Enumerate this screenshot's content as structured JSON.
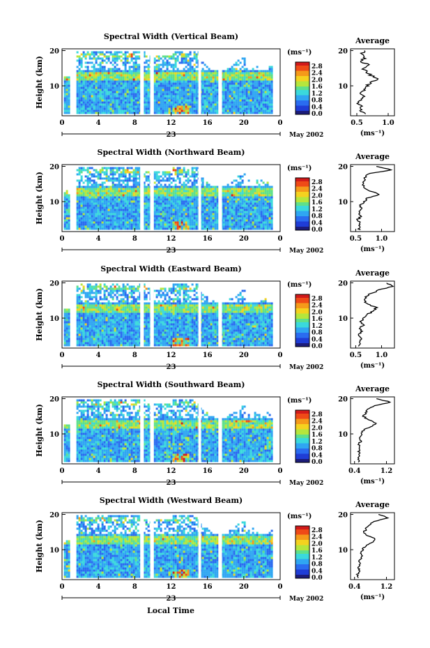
{
  "figure": {
    "footer_xlabel": "Local Time",
    "date_label": "May 2002",
    "day_label": "23",
    "colorbar_ticks": [
      "2.8",
      "2.4",
      "2.0",
      "1.6",
      "1.2",
      "0.8",
      "0.4",
      "0.0"
    ],
    "colorbar_unit": "(ms⁻¹)",
    "colors": {
      "palette": [
        "#1c1c7a",
        "#1f3dd6",
        "#2a6cf0",
        "#2fa6f2",
        "#3ad9dc",
        "#5fe08a",
        "#b6e63c",
        "#f5d21f",
        "#f59a1a",
        "#ef4a17",
        "#d11a1a"
      ],
      "background": "#ffffff"
    }
  },
  "chart_data": [
    {
      "type": "heatmap",
      "title": "Spectral Width (Vertical Beam)",
      "ylabel": "Height (km)",
      "xlabel": "",
      "x_ticks": [
        "0",
        "4",
        "8",
        "12",
        "16",
        "20",
        "0"
      ],
      "y_ticks": [
        "20",
        "10"
      ],
      "xlim": [
        0,
        24
      ],
      "ylim": [
        1.5,
        20.5
      ],
      "colorbar_range": [
        0.0,
        3.0
      ],
      "profile": {
        "title": "Average",
        "xlabel": "(ms⁻¹)",
        "x_ticks": [
          "0.5",
          "1.0"
        ],
        "y_ticks": [
          "20",
          "10"
        ],
        "xlim": [
          0.4,
          1.1
        ],
        "heights": [
          2,
          3,
          4,
          5,
          6,
          7,
          8,
          9,
          10,
          11,
          12,
          13,
          14,
          15,
          16,
          17,
          18,
          19,
          20
        ],
        "values": [
          0.62,
          0.55,
          0.58,
          0.52,
          0.56,
          0.6,
          0.57,
          0.63,
          0.66,
          0.72,
          0.85,
          0.72,
          0.65,
          0.6,
          0.68,
          0.56,
          0.63,
          0.58,
          0.62
        ]
      }
    },
    {
      "type": "heatmap",
      "title": "Spectral Width (Northward Beam)",
      "ylabel": "Height (km)",
      "xlabel": "",
      "x_ticks": [
        "0",
        "4",
        "8",
        "12",
        "16",
        "20",
        "0"
      ],
      "y_ticks": [
        "20",
        "10"
      ],
      "xlim": [
        0,
        24
      ],
      "ylim": [
        1.5,
        20.5
      ],
      "colorbar_range": [
        0.0,
        3.0
      ],
      "profile": {
        "title": "Average",
        "xlabel": "(ms⁻¹)",
        "x_ticks": [
          "0.5",
          "1.0"
        ],
        "y_ticks": [
          "20",
          "10"
        ],
        "xlim": [
          0.4,
          1.25
        ],
        "heights": [
          2,
          3,
          4,
          5,
          6,
          7,
          8,
          9,
          10,
          11,
          12,
          13,
          14,
          15,
          16,
          17,
          18,
          19,
          20
        ],
        "values": [
          0.58,
          0.55,
          0.6,
          0.54,
          0.6,
          0.56,
          0.62,
          0.58,
          0.66,
          0.72,
          0.95,
          0.78,
          0.66,
          0.62,
          0.7,
          0.68,
          0.75,
          1.2,
          0.9
        ]
      }
    },
    {
      "type": "heatmap",
      "title": "Spectral Width (Eastward Beam)",
      "ylabel": "Height (km)",
      "xlabel": "",
      "x_ticks": [
        "0",
        "4",
        "8",
        "12",
        "16",
        "20",
        "0"
      ],
      "y_ticks": [
        "20",
        "10"
      ],
      "xlim": [
        0,
        24
      ],
      "ylim": [
        1.5,
        20.5
      ],
      "colorbar_range": [
        0.0,
        3.0
      ],
      "profile": {
        "title": "Average",
        "xlabel": "(ms⁻¹)",
        "x_ticks": [
          "0.5",
          "1.0"
        ],
        "y_ticks": [
          "20",
          "10"
        ],
        "xlim": [
          0.4,
          1.25
        ],
        "heights": [
          2,
          3,
          4,
          5,
          6,
          7,
          8,
          9,
          10,
          11,
          12,
          13,
          14,
          15,
          16,
          17,
          18,
          19,
          20
        ],
        "values": [
          0.58,
          0.56,
          0.6,
          0.55,
          0.62,
          0.57,
          0.64,
          0.6,
          0.66,
          0.72,
          0.85,
          0.9,
          0.72,
          0.65,
          0.7,
          0.8,
          0.95,
          1.2,
          1.1
        ]
      }
    },
    {
      "type": "heatmap",
      "title": "Spectral Width (Southward Beam)",
      "ylabel": "Height (km)",
      "xlabel": "",
      "x_ticks": [
        "0",
        "4",
        "8",
        "12",
        "16",
        "20",
        "0"
      ],
      "y_ticks": [
        "20",
        "10"
      ],
      "xlim": [
        0,
        24
      ],
      "ylim": [
        1.5,
        20.5
      ],
      "colorbar_range": [
        0.0,
        3.0
      ],
      "profile": {
        "title": "Average",
        "xlabel": "(ms⁻¹)",
        "x_ticks": [
          "0.4",
          "1.2"
        ],
        "y_ticks": [
          "20",
          "10"
        ],
        "xlim": [
          0.3,
          1.4
        ],
        "heights": [
          2,
          3,
          4,
          5,
          6,
          7,
          8,
          9,
          10,
          11,
          12,
          13,
          14,
          15,
          16,
          17,
          18,
          19,
          20
        ],
        "values": [
          0.5,
          0.48,
          0.52,
          0.5,
          0.55,
          0.5,
          0.56,
          0.52,
          0.58,
          0.62,
          0.8,
          0.95,
          0.75,
          0.62,
          0.68,
          0.72,
          0.9,
          1.3,
          0.95
        ]
      }
    },
    {
      "type": "heatmap",
      "title": "Spectral Width (Westward Beam)",
      "ylabel": "Height (km)",
      "xlabel": "",
      "x_ticks": [
        "0",
        "4",
        "8",
        "12",
        "16",
        "20",
        "0"
      ],
      "y_ticks": [
        "20",
        "10"
      ],
      "xlim": [
        0,
        24
      ],
      "ylim": [
        1.5,
        20.5
      ],
      "colorbar_range": [
        0.0,
        3.0
      ],
      "profile": {
        "title": "Average",
        "xlabel": "(ms⁻¹)",
        "x_ticks": [
          "0.4",
          "1.2"
        ],
        "y_ticks": [
          "20",
          "10"
        ],
        "xlim": [
          0.3,
          1.4
        ],
        "heights": [
          2,
          3,
          4,
          5,
          6,
          7,
          8,
          9,
          10,
          11,
          12,
          13,
          14,
          15,
          16,
          17,
          18,
          19,
          20
        ],
        "values": [
          0.5,
          0.48,
          0.53,
          0.5,
          0.56,
          0.52,
          0.58,
          0.54,
          0.6,
          0.66,
          0.85,
          0.92,
          0.72,
          0.64,
          0.7,
          0.75,
          0.88,
          1.25,
          1.0
        ]
      }
    }
  ]
}
